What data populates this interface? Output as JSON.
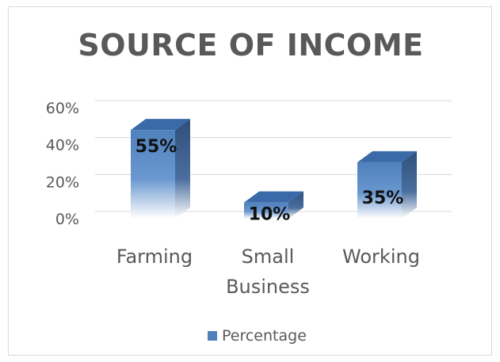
{
  "chart_data": {
    "type": "bar",
    "title": "SOURCE OF INCOME",
    "categories": [
      "Farming",
      "Small Business",
      "Working"
    ],
    "category_lines": [
      [
        "Farming"
      ],
      [
        "Small",
        "Business"
      ],
      [
        "Working"
      ]
    ],
    "series": [
      {
        "name": "Percentage",
        "values": [
          55,
          10,
          35
        ]
      }
    ],
    "data_labels": [
      "55%",
      "10%",
      "35%"
    ],
    "y_ticks": [
      "0%",
      "20%",
      "40%",
      "60%"
    ],
    "ylim": [
      0,
      60
    ],
    "grid": true,
    "legend_position": "bottom",
    "three_d": true,
    "colors": {
      "bar_front": "#4f81bd",
      "bar_side": "#2e4f7a",
      "bar_top": "#3a6aa8",
      "grid": "#d9d9d9",
      "text": "#595959"
    }
  }
}
